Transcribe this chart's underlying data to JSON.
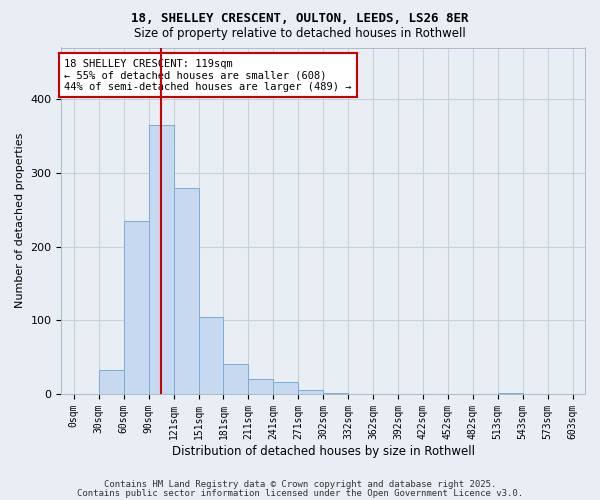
{
  "title1": "18, SHELLEY CRESCENT, OULTON, LEEDS, LS26 8ER",
  "title2": "Size of property relative to detached houses in Rothwell",
  "xlabel": "Distribution of detached houses by size in Rothwell",
  "ylabel": "Number of detached properties",
  "bar_labels": [
    "0sqm",
    "30sqm",
    "60sqm",
    "90sqm",
    "121sqm",
    "151sqm",
    "181sqm",
    "211sqm",
    "241sqm",
    "271sqm",
    "302sqm",
    "332sqm",
    "362sqm",
    "392sqm",
    "422sqm",
    "452sqm",
    "482sqm",
    "513sqm",
    "543sqm",
    "573sqm",
    "603sqm"
  ],
  "bar_values": [
    0,
    32,
    235,
    365,
    280,
    105,
    40,
    20,
    16,
    5,
    1,
    0,
    0,
    0,
    0,
    0,
    0,
    1,
    0,
    0,
    0
  ],
  "bar_color": "#c6d9f0",
  "bar_edgecolor": "#7aadd4",
  "ylim": [
    0,
    470
  ],
  "red_line_x": 3.5,
  "annotation_text": "18 SHELLEY CRESCENT: 119sqm\n← 55% of detached houses are smaller (608)\n44% of semi-detached houses are larger (489) →",
  "annotation_box_color": "#ffffff",
  "annotation_box_edgecolor": "#cc0000",
  "vline_color": "#cc0000",
  "grid_color": "#c8d0d8",
  "background_color": "#e8eef4",
  "footer_text1": "Contains HM Land Registry data © Crown copyright and database right 2025.",
  "footer_text2": "Contains public sector information licensed under the Open Government Licence v3.0."
}
